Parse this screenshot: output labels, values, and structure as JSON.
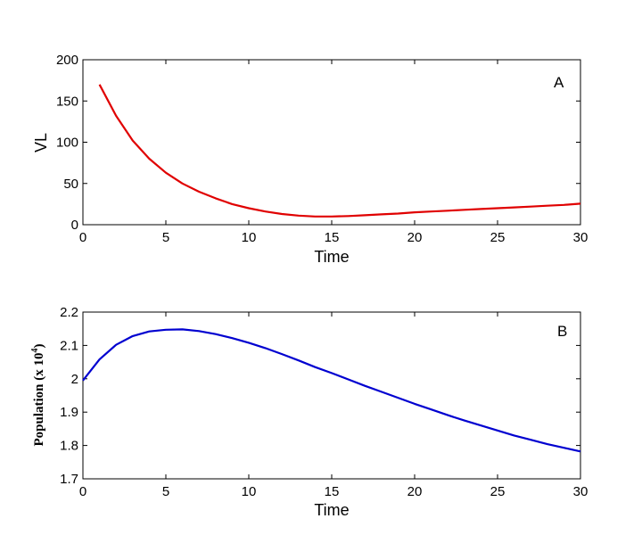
{
  "chart_data": [
    {
      "type": "line",
      "panel_label": "A",
      "title": "",
      "xlabel": "Time",
      "ylabel": "VL",
      "xlim": [
        0,
        30
      ],
      "ylim": [
        0,
        200
      ],
      "xticks": [
        0,
        5,
        10,
        15,
        20,
        25,
        30
      ],
      "yticks": [
        0,
        50,
        100,
        150,
        200
      ],
      "grid": false,
      "series": [
        {
          "color": "#e00000",
          "x": [
            1,
            2,
            3,
            4,
            5,
            6,
            7,
            8,
            9,
            10,
            11,
            12,
            13,
            14,
            15,
            16,
            17,
            18,
            19,
            20,
            21,
            22,
            23,
            24,
            25,
            26,
            27,
            28,
            29,
            30
          ],
          "values": [
            170,
            132,
            102,
            80,
            63,
            50,
            40,
            32,
            25,
            20,
            16,
            13,
            11,
            10,
            10,
            10.5,
            11.5,
            12.5,
            13.5,
            15,
            16,
            17,
            18,
            19,
            20,
            21,
            22,
            23,
            24,
            25.5
          ]
        }
      ]
    },
    {
      "type": "line",
      "panel_label": "B",
      "title": "",
      "xlabel": "Time",
      "ylabel": "Population (x 10",
      "ylabel_sup": "4",
      "ylabel_end": ")",
      "xlim": [
        0,
        30
      ],
      "ylim": [
        1.7,
        2.2
      ],
      "xticks": [
        0,
        5,
        10,
        15,
        20,
        25,
        30
      ],
      "yticks": [
        1.7,
        1.8,
        1.9,
        2,
        2.1,
        2.2
      ],
      "ytick_labels": [
        "1.7",
        "1.8",
        "1.9",
        "2",
        "2.1",
        "2.2"
      ],
      "grid": false,
      "series": [
        {
          "color": "#0000d0",
          "x": [
            0,
            1,
            2,
            3,
            4,
            5,
            6,
            7,
            8,
            9,
            10,
            11,
            12,
            13,
            14,
            15,
            16,
            17,
            18,
            19,
            20,
            21,
            22,
            23,
            24,
            25,
            26,
            27,
            28,
            29,
            30
          ],
          "values": [
            1.995,
            2.058,
            2.102,
            2.128,
            2.142,
            2.147,
            2.148,
            2.143,
            2.134,
            2.122,
            2.108,
            2.092,
            2.074,
            2.055,
            2.035,
            2.017,
            1.998,
            1.979,
            1.961,
            1.943,
            1.925,
            1.908,
            1.891,
            1.875,
            1.86,
            1.845,
            1.83,
            1.817,
            1.804,
            1.793,
            1.782
          ]
        }
      ]
    }
  ]
}
